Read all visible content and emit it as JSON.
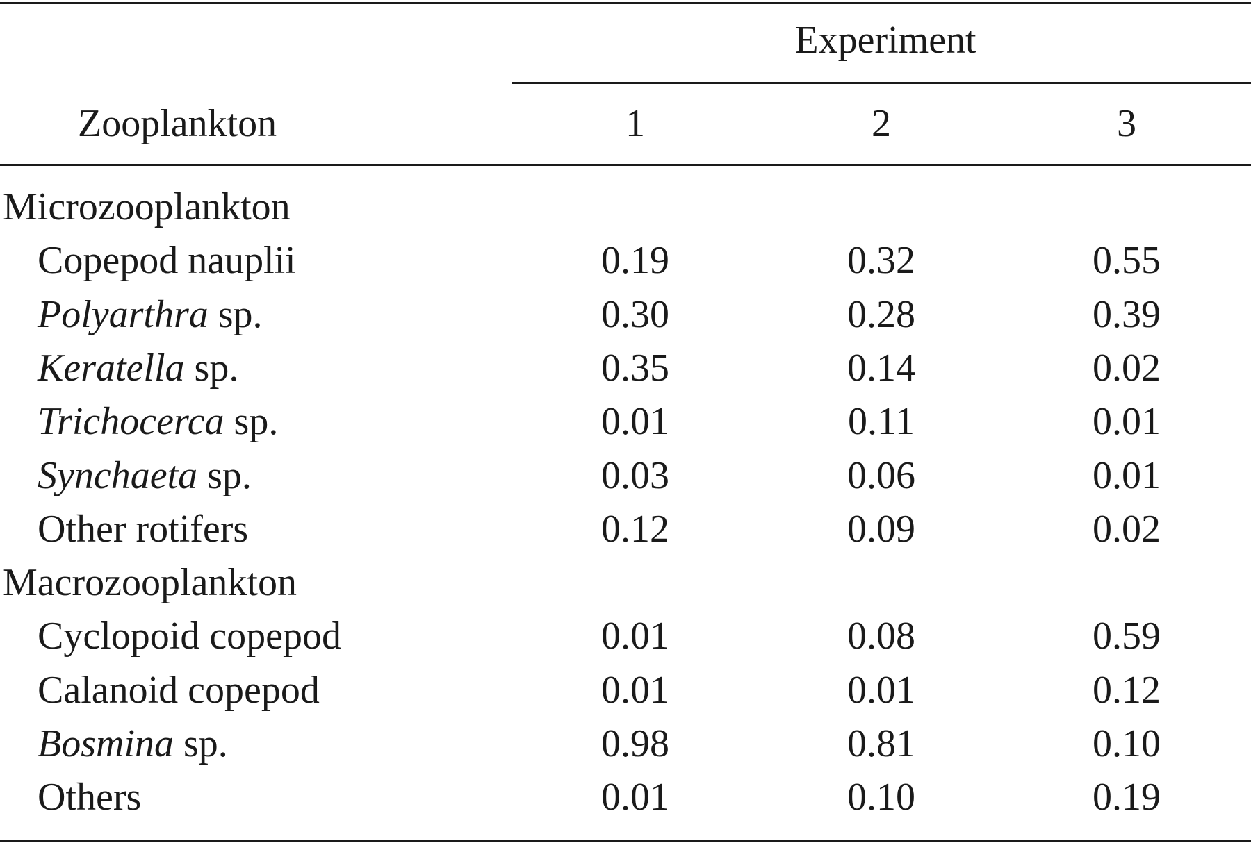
{
  "table": {
    "header": {
      "spanner": "Experiment",
      "row_label": "Zooplankton",
      "columns": [
        "1",
        "2",
        "3"
      ]
    },
    "groups": [
      {
        "label": "Microzooplankton",
        "rows": [
          {
            "name": "Copepod nauplii",
            "genus": "",
            "suffix": "",
            "values": [
              "0.19",
              "0.32",
              "0.55"
            ]
          },
          {
            "name": "",
            "genus": "Polyarthra",
            "suffix": " sp.",
            "values": [
              "0.30",
              "0.28",
              "0.39"
            ]
          },
          {
            "name": "",
            "genus": "Keratella",
            "suffix": " sp.",
            "values": [
              "0.35",
              "0.14",
              "0.02"
            ]
          },
          {
            "name": "",
            "genus": "Trichocerca",
            "suffix": " sp.",
            "values": [
              "0.01",
              "0.11",
              "0.01"
            ]
          },
          {
            "name": "",
            "genus": "Synchaeta",
            "suffix": " sp.",
            "values": [
              "0.03",
              "0.06",
              "0.01"
            ]
          },
          {
            "name": "Other rotifers",
            "genus": "",
            "suffix": "",
            "values": [
              "0.12",
              "0.09",
              "0.02"
            ]
          }
        ]
      },
      {
        "label": "Macrozooplankton",
        "rows": [
          {
            "name": "Cyclopoid copepod",
            "genus": "",
            "suffix": "",
            "values": [
              "0.01",
              "0.08",
              "0.59"
            ]
          },
          {
            "name": "Calanoid copepod",
            "genus": "",
            "suffix": "",
            "values": [
              "0.01",
              "0.01",
              "0.12"
            ]
          },
          {
            "name": "",
            "genus": "Bosmina",
            "suffix": " sp.",
            "values": [
              "0.98",
              "0.81",
              "0.10"
            ]
          },
          {
            "name": "Others",
            "genus": "",
            "suffix": "",
            "values": [
              "0.01",
              "0.10",
              "0.19"
            ]
          }
        ]
      }
    ]
  }
}
